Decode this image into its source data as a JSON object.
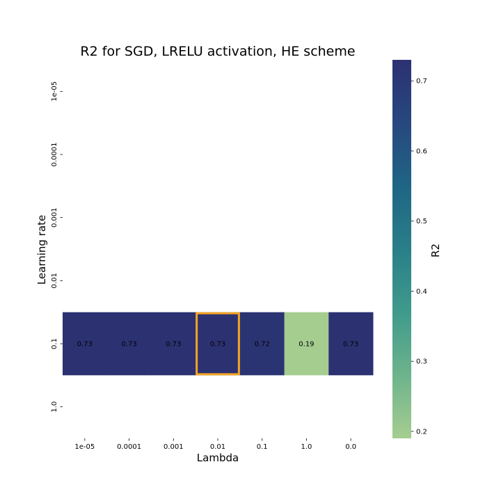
{
  "chart_data": {
    "type": "heatmap",
    "title": "R2 for SGD, LRELU activation, HE scheme",
    "xlabel": "Lambda",
    "ylabel": "Learning rate",
    "x_categories": [
      "1e-05",
      "0.0001",
      "0.001",
      "0.01",
      "0.1",
      "1.0",
      "0.0"
    ],
    "y_categories": [
      "1e-05",
      "0.0001",
      "0.001",
      "0.01",
      "0.1",
      "1.0"
    ],
    "values": [
      [
        null,
        null,
        null,
        null,
        null,
        null,
        null
      ],
      [
        null,
        null,
        null,
        null,
        null,
        null,
        null
      ],
      [
        null,
        null,
        null,
        null,
        null,
        null,
        null
      ],
      [
        null,
        null,
        null,
        null,
        null,
        null,
        null
      ],
      [
        0.73,
        0.73,
        0.73,
        0.73,
        0.72,
        0.19,
        0.73
      ],
      [
        null,
        null,
        null,
        null,
        null,
        null,
        null
      ]
    ],
    "value_labels": [
      [
        "",
        "",
        "",
        "",
        "",
        "",
        ""
      ],
      [
        "",
        "",
        "",
        "",
        "",
        "",
        ""
      ],
      [
        "",
        "",
        "",
        "",
        "",
        "",
        ""
      ],
      [
        "",
        "",
        "",
        "",
        "",
        "",
        ""
      ],
      [
        "0.73",
        "0.73",
        "0.73",
        "0.73",
        "0.72",
        "0.19",
        "0.73"
      ],
      [
        "",
        "",
        "",
        "",
        "",
        "",
        ""
      ]
    ],
    "highlight": {
      "row": 4,
      "col": 3,
      "color": "#f5a623"
    },
    "colorbar": {
      "label": "R2",
      "range": [
        0.19,
        0.73
      ],
      "ticks": [
        0.2,
        0.3,
        0.4,
        0.5,
        0.6,
        0.7
      ],
      "tick_labels": [
        "0.2",
        "0.3",
        "0.4",
        "0.5",
        "0.6",
        "0.7"
      ],
      "colormap": "crest",
      "stops": [
        "#a5cd90",
        "#6db38c",
        "#3f9a8c",
        "#297f88",
        "#1f6585",
        "#27487e",
        "#2c3172"
      ]
    },
    "grid": false
  }
}
